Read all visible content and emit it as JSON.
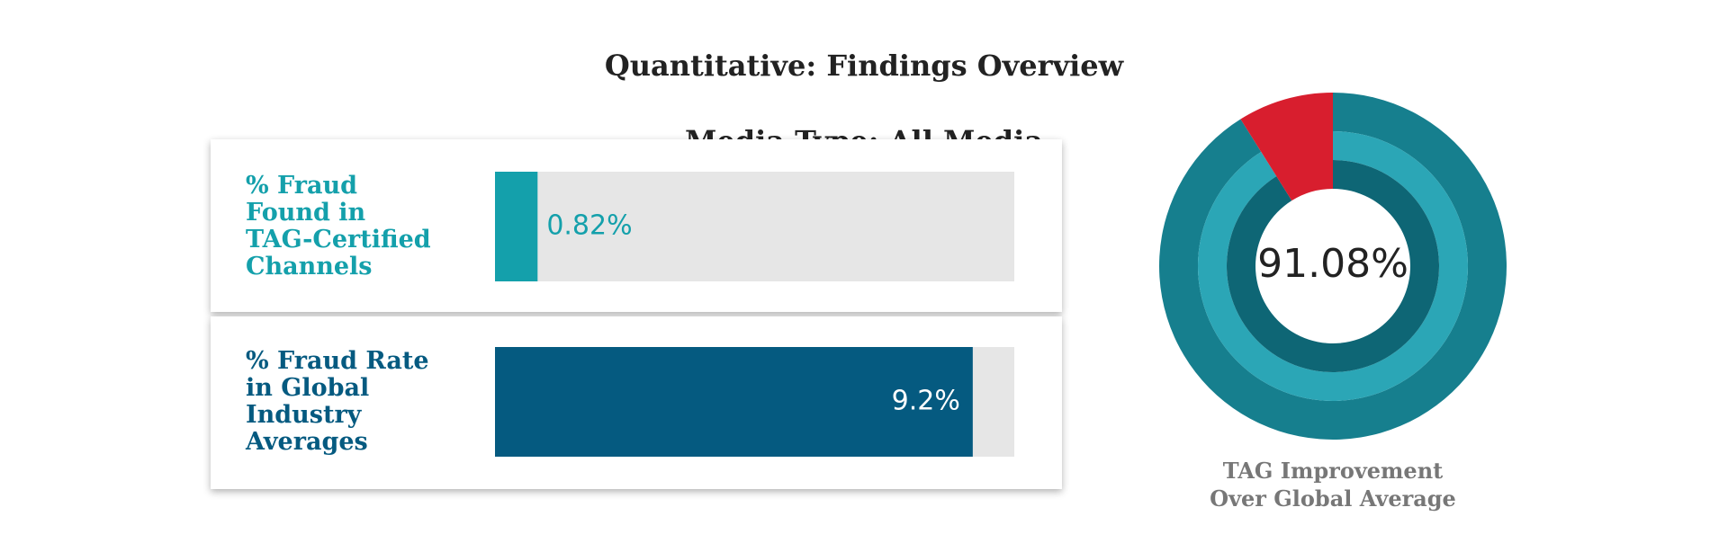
{
  "header": {
    "title": [
      "Quantitative: Findings Overview",
      "Media Type:  All Media"
    ]
  },
  "chart_data": [
    {
      "type": "bar",
      "orientation": "horizontal",
      "categories": [
        "% Fraud\nFound in\nTAG-Certified\nChannels",
        "% Fraud Rate\nin Global\nIndustry\nAverages"
      ],
      "values": [
        0.82,
        9.2
      ],
      "value_labels": [
        "0.82%",
        "9.2%"
      ],
      "colors": [
        "#14a0ab",
        "#055a80"
      ],
      "xlim": [
        0,
        10
      ]
    },
    {
      "type": "donut",
      "title": "TAG Improvement\nOver Global Average",
      "value": 91.08,
      "value_label": "91.08%",
      "color": "#1a8c9c",
      "rest_color": "#d81e2e"
    }
  ]
}
